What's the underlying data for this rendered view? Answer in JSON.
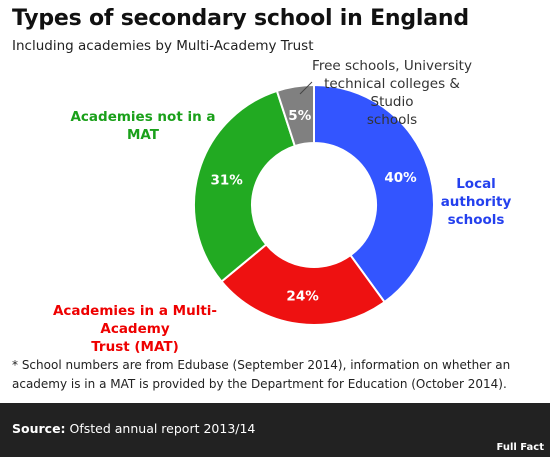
{
  "header": {
    "title": "Types of secondary school in England",
    "subtitle": "Including academies by Multi-Academy Trust"
  },
  "labels": {
    "free_schools_line1": "Free schools, University",
    "free_schools_line2": "technical colleges & Studio",
    "free_schools_line3": "schools",
    "academies_not_mat": "Academies not in a MAT",
    "local_line1": "Local",
    "local_line2": "authority",
    "local_line3": "schools",
    "academies_mat_line1": "Academies in a Multi-Academy",
    "academies_mat_line2": "Trust (MAT)"
  },
  "footnote": {
    "line1": "* School numbers are from Edubase (September 2014), information on whether an",
    "line2": "academy is in a MAT is provided by the Department for Education (October 2014)."
  },
  "footer": {
    "source_label": "Source:",
    "source_text": " Ofsted annual report 2013/14",
    "logo_text": "Full Fact"
  },
  "chart_data": {
    "type": "pie",
    "donut": true,
    "start_angle_deg": 0,
    "slices": [
      {
        "category": "Local authority schools",
        "value": 40,
        "label": "40%",
        "color": "#3355ff",
        "text_color": "#ffffff"
      },
      {
        "category": "Academies in a Multi-Academy Trust (MAT)",
        "value": 24,
        "label": "24%",
        "color": "#ee1111",
        "text_color": "#ffffff"
      },
      {
        "category": "Academies not in a MAT",
        "value": 31,
        "label": "31%",
        "color": "#22aa22",
        "text_color": "#ffffff"
      },
      {
        "category": "Free schools, University technical colleges & Studio schools",
        "value": 5,
        "label": "5%",
        "color": "#808080",
        "text_color": "#ffffff"
      }
    ]
  }
}
